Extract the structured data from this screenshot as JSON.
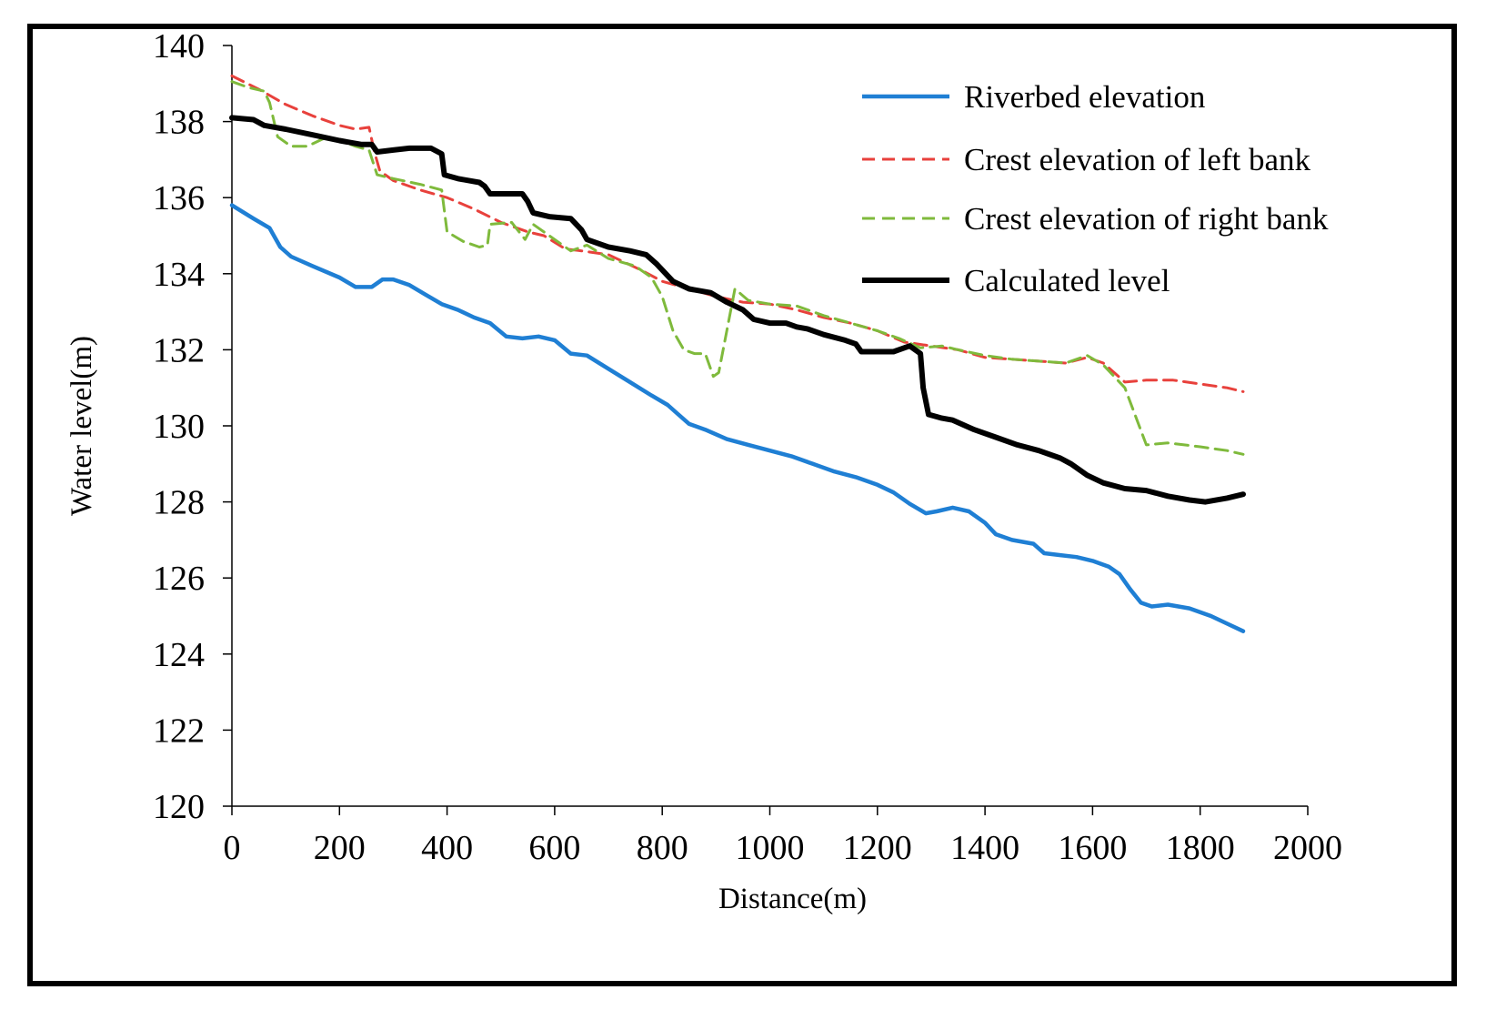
{
  "chart_data": {
    "type": "line",
    "title": "",
    "xlabel": "Distance(m)",
    "ylabel": "Water level(m)",
    "xlim": [
      0,
      2000
    ],
    "ylim": [
      120,
      140
    ],
    "xticks": [
      "0",
      "200",
      "400",
      "600",
      "800",
      "1000",
      "1200",
      "1400",
      "1600",
      "1800",
      "2000"
    ],
    "yticks": [
      "120",
      "122",
      "124",
      "126",
      "128",
      "130",
      "132",
      "134",
      "136",
      "138",
      "140"
    ],
    "grid": false,
    "legend_position": "top-right",
    "series": [
      {
        "name": "Riverbed  elevation",
        "color": "#1f7fd4",
        "style": "solid",
        "points": [
          [
            0,
            135.8
          ],
          [
            40,
            135.45
          ],
          [
            70,
            135.2
          ],
          [
            90,
            134.7
          ],
          [
            110,
            134.45
          ],
          [
            150,
            134.2
          ],
          [
            200,
            133.9
          ],
          [
            230,
            133.65
          ],
          [
            260,
            133.65
          ],
          [
            280,
            133.85
          ],
          [
            300,
            133.85
          ],
          [
            330,
            133.7
          ],
          [
            360,
            133.45
          ],
          [
            390,
            133.2
          ],
          [
            420,
            133.05
          ],
          [
            450,
            132.85
          ],
          [
            480,
            132.7
          ],
          [
            510,
            132.35
          ],
          [
            540,
            132.3
          ],
          [
            570,
            132.35
          ],
          [
            600,
            132.25
          ],
          [
            630,
            131.9
          ],
          [
            660,
            131.85
          ],
          [
            700,
            131.5
          ],
          [
            740,
            131.15
          ],
          [
            780,
            130.8
          ],
          [
            810,
            130.55
          ],
          [
            830,
            130.3
          ],
          [
            850,
            130.05
          ],
          [
            880,
            129.9
          ],
          [
            920,
            129.65
          ],
          [
            960,
            129.5
          ],
          [
            1000,
            129.35
          ],
          [
            1040,
            129.2
          ],
          [
            1080,
            129.0
          ],
          [
            1120,
            128.8
          ],
          [
            1160,
            128.65
          ],
          [
            1200,
            128.45
          ],
          [
            1230,
            128.25
          ],
          [
            1260,
            127.95
          ],
          [
            1290,
            127.7
          ],
          [
            1310,
            127.75
          ],
          [
            1340,
            127.85
          ],
          [
            1370,
            127.75
          ],
          [
            1400,
            127.45
          ],
          [
            1420,
            127.15
          ],
          [
            1450,
            127.0
          ],
          [
            1490,
            126.9
          ],
          [
            1510,
            126.65
          ],
          [
            1540,
            126.6
          ],
          [
            1570,
            126.55
          ],
          [
            1600,
            126.45
          ],
          [
            1630,
            126.3
          ],
          [
            1650,
            126.1
          ],
          [
            1670,
            125.7
          ],
          [
            1690,
            125.35
          ],
          [
            1710,
            125.25
          ],
          [
            1740,
            125.3
          ],
          [
            1780,
            125.2
          ],
          [
            1820,
            125.0
          ],
          [
            1850,
            124.8
          ],
          [
            1880,
            124.6
          ]
        ]
      },
      {
        "name": "Crest elevation of left bank",
        "color": "#e8413c",
        "style": "dashed",
        "points": [
          [
            0,
            139.2
          ],
          [
            50,
            138.85
          ],
          [
            100,
            138.45
          ],
          [
            150,
            138.15
          ],
          [
            200,
            137.9
          ],
          [
            230,
            137.8
          ],
          [
            255,
            137.85
          ],
          [
            265,
            137.2
          ],
          [
            275,
            136.7
          ],
          [
            300,
            136.45
          ],
          [
            350,
            136.2
          ],
          [
            400,
            136.0
          ],
          [
            450,
            135.7
          ],
          [
            500,
            135.35
          ],
          [
            550,
            135.1
          ],
          [
            580,
            135.0
          ],
          [
            620,
            134.65
          ],
          [
            650,
            134.6
          ],
          [
            700,
            134.5
          ],
          [
            760,
            134.1
          ],
          [
            800,
            133.8
          ],
          [
            850,
            133.6
          ],
          [
            900,
            133.4
          ],
          [
            950,
            133.25
          ],
          [
            1000,
            133.2
          ],
          [
            1050,
            133.05
          ],
          [
            1100,
            132.85
          ],
          [
            1150,
            132.7
          ],
          [
            1200,
            132.5
          ],
          [
            1250,
            132.2
          ],
          [
            1300,
            132.1
          ],
          [
            1350,
            132.0
          ],
          [
            1400,
            131.8
          ],
          [
            1450,
            131.75
          ],
          [
            1500,
            131.7
          ],
          [
            1550,
            131.65
          ],
          [
            1590,
            131.8
          ],
          [
            1620,
            131.65
          ],
          [
            1660,
            131.15
          ],
          [
            1700,
            131.2
          ],
          [
            1750,
            131.2
          ],
          [
            1800,
            131.1
          ],
          [
            1850,
            131.0
          ],
          [
            1880,
            130.9
          ]
        ]
      },
      {
        "name": "Crest elevation of right bank",
        "color": "#7fba3c",
        "style": "dashed",
        "points": [
          [
            0,
            139.05
          ],
          [
            30,
            138.9
          ],
          [
            60,
            138.8
          ],
          [
            70,
            138.5
          ],
          [
            85,
            137.6
          ],
          [
            110,
            137.35
          ],
          [
            140,
            137.35
          ],
          [
            170,
            137.55
          ],
          [
            200,
            137.5
          ],
          [
            230,
            137.35
          ],
          [
            255,
            137.25
          ],
          [
            270,
            136.6
          ],
          [
            300,
            136.5
          ],
          [
            350,
            136.35
          ],
          [
            390,
            136.2
          ],
          [
            400,
            135.1
          ],
          [
            430,
            134.85
          ],
          [
            460,
            134.7
          ],
          [
            475,
            134.75
          ],
          [
            480,
            135.3
          ],
          [
            520,
            135.35
          ],
          [
            545,
            134.9
          ],
          [
            560,
            135.3
          ],
          [
            600,
            134.9
          ],
          [
            630,
            134.6
          ],
          [
            660,
            134.75
          ],
          [
            700,
            134.4
          ],
          [
            750,
            134.2
          ],
          [
            780,
            133.9
          ],
          [
            800,
            133.4
          ],
          [
            820,
            132.5
          ],
          [
            840,
            132.0
          ],
          [
            860,
            131.9
          ],
          [
            880,
            131.9
          ],
          [
            895,
            131.3
          ],
          [
            905,
            131.4
          ],
          [
            920,
            132.5
          ],
          [
            935,
            133.6
          ],
          [
            960,
            133.3
          ],
          [
            1000,
            133.2
          ],
          [
            1050,
            133.15
          ],
          [
            1100,
            132.9
          ],
          [
            1150,
            132.7
          ],
          [
            1200,
            132.5
          ],
          [
            1240,
            132.3
          ],
          [
            1280,
            132.05
          ],
          [
            1320,
            132.1
          ],
          [
            1350,
            132.0
          ],
          [
            1400,
            131.85
          ],
          [
            1450,
            131.75
          ],
          [
            1500,
            131.7
          ],
          [
            1550,
            131.65
          ],
          [
            1590,
            131.85
          ],
          [
            1620,
            131.6
          ],
          [
            1660,
            131.0
          ],
          [
            1700,
            129.5
          ],
          [
            1740,
            129.55
          ],
          [
            1800,
            129.45
          ],
          [
            1850,
            129.35
          ],
          [
            1880,
            129.25
          ]
        ]
      },
      {
        "name": "Calculated level",
        "color": "#000000",
        "style": "solid",
        "points": [
          [
            0,
            138.1
          ],
          [
            40,
            138.05
          ],
          [
            60,
            137.9
          ],
          [
            100,
            137.8
          ],
          [
            150,
            137.65
          ],
          [
            200,
            137.5
          ],
          [
            240,
            137.4
          ],
          [
            260,
            137.4
          ],
          [
            270,
            137.2
          ],
          [
            300,
            137.25
          ],
          [
            330,
            137.3
          ],
          [
            370,
            137.3
          ],
          [
            390,
            137.15
          ],
          [
            395,
            136.6
          ],
          [
            420,
            136.5
          ],
          [
            460,
            136.4
          ],
          [
            470,
            136.3
          ],
          [
            480,
            136.1
          ],
          [
            540,
            136.1
          ],
          [
            550,
            135.9
          ],
          [
            560,
            135.6
          ],
          [
            590,
            135.5
          ],
          [
            630,
            135.45
          ],
          [
            650,
            135.15
          ],
          [
            660,
            134.9
          ],
          [
            700,
            134.7
          ],
          [
            740,
            134.6
          ],
          [
            770,
            134.5
          ],
          [
            790,
            134.25
          ],
          [
            820,
            133.8
          ],
          [
            850,
            133.6
          ],
          [
            890,
            133.5
          ],
          [
            920,
            133.25
          ],
          [
            950,
            133.05
          ],
          [
            970,
            132.8
          ],
          [
            1000,
            132.7
          ],
          [
            1030,
            132.7
          ],
          [
            1050,
            132.6
          ],
          [
            1070,
            132.55
          ],
          [
            1100,
            132.4
          ],
          [
            1140,
            132.25
          ],
          [
            1160,
            132.15
          ],
          [
            1170,
            131.95
          ],
          [
            1230,
            131.95
          ],
          [
            1260,
            132.1
          ],
          [
            1280,
            131.9
          ],
          [
            1285,
            131.0
          ],
          [
            1295,
            130.3
          ],
          [
            1320,
            130.2
          ],
          [
            1340,
            130.15
          ],
          [
            1380,
            129.9
          ],
          [
            1420,
            129.7
          ],
          [
            1460,
            129.5
          ],
          [
            1500,
            129.35
          ],
          [
            1540,
            129.15
          ],
          [
            1560,
            129.0
          ],
          [
            1590,
            128.7
          ],
          [
            1620,
            128.5
          ],
          [
            1660,
            128.35
          ],
          [
            1700,
            128.3
          ],
          [
            1740,
            128.15
          ],
          [
            1780,
            128.05
          ],
          [
            1810,
            128.0
          ],
          [
            1850,
            128.1
          ],
          [
            1880,
            128.2
          ]
        ]
      }
    ]
  }
}
